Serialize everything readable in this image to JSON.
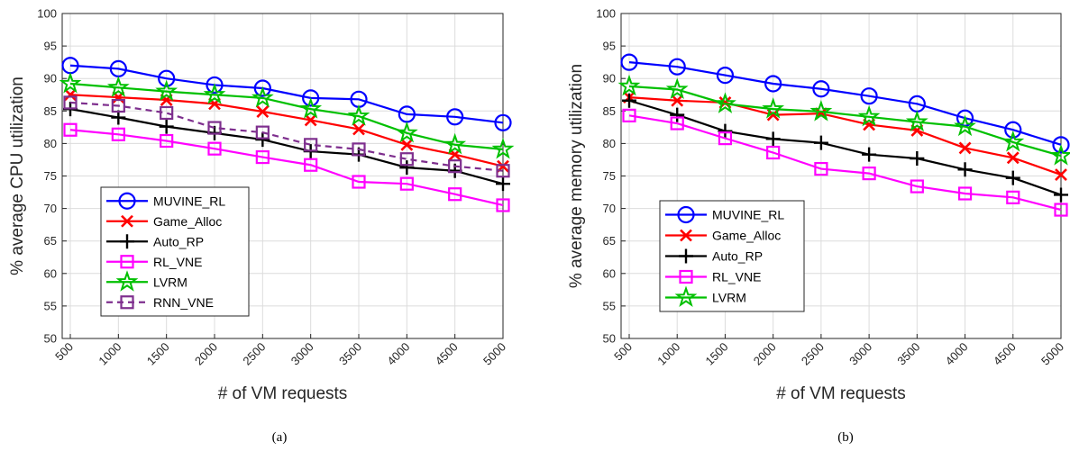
{
  "chart_data": [
    {
      "type": "line",
      "panel_label": "(a)",
      "xlabel": "# of VM requests",
      "ylabel": "% average CPU utilization",
      "ylim": [
        50,
        100
      ],
      "yticks": [
        50,
        55,
        60,
        65,
        70,
        75,
        80,
        85,
        90,
        95,
        100
      ],
      "x": [
        500,
        1000,
        1500,
        2000,
        2500,
        3000,
        3500,
        4000,
        4500,
        5000
      ],
      "grid": true,
      "legend_position": "bottom-left",
      "series": [
        {
          "name": "MUVINE_RL",
          "color": "#0000ff",
          "marker": "circle",
          "dash": false,
          "values": [
            92.0,
            91.5,
            90.0,
            89.0,
            88.5,
            87.0,
            86.8,
            84.5,
            84.1,
            83.2
          ]
        },
        {
          "name": "Game_Alloc",
          "color": "#ff0000",
          "marker": "x",
          "dash": false,
          "values": [
            87.5,
            87.1,
            86.7,
            86.1,
            84.9,
            83.6,
            82.2,
            79.8,
            78.3,
            76.5
          ]
        },
        {
          "name": "Auto_RP",
          "color": "#000000",
          "marker": "plus",
          "dash": false,
          "values": [
            85.3,
            84.0,
            82.6,
            81.6,
            80.6,
            78.8,
            78.3,
            76.3,
            75.8,
            73.8
          ]
        },
        {
          "name": "RL_VNE",
          "color": "#ff00ff",
          "marker": "square",
          "dash": false,
          "values": [
            82.1,
            81.4,
            80.4,
            79.2,
            77.9,
            76.7,
            74.1,
            73.8,
            72.2,
            70.5
          ]
        },
        {
          "name": "LVRM",
          "color": "#00c000",
          "marker": "star",
          "dash": false,
          "values": [
            89.2,
            88.6,
            88.0,
            87.5,
            87.0,
            85.3,
            84.2,
            81.6,
            79.8,
            79.1
          ]
        },
        {
          "name": "RNN_VNE",
          "color": "#7e2f8e",
          "marker": "square",
          "dash": true,
          "values": [
            86.3,
            85.8,
            84.7,
            82.4,
            81.7,
            79.8,
            79.1,
            77.6,
            76.5,
            75.8
          ]
        }
      ]
    },
    {
      "type": "line",
      "panel_label": "(b)",
      "xlabel": "# of VM requests",
      "ylabel": "% average memory utilization",
      "ylim": [
        50,
        100
      ],
      "yticks": [
        50,
        55,
        60,
        65,
        70,
        75,
        80,
        85,
        90,
        95,
        100
      ],
      "x": [
        500,
        1000,
        1500,
        2000,
        2500,
        3000,
        3500,
        4000,
        4500,
        5000
      ],
      "grid": true,
      "legend_position": "bottom-left",
      "series": [
        {
          "name": "MUVINE_RL",
          "color": "#0000ff",
          "marker": "circle",
          "dash": false,
          "values": [
            92.5,
            91.8,
            90.5,
            89.2,
            88.4,
            87.3,
            86.1,
            83.9,
            82.1,
            79.8
          ]
        },
        {
          "name": "Game_Alloc",
          "color": "#ff0000",
          "marker": "x",
          "dash": false,
          "values": [
            87.1,
            86.6,
            86.3,
            84.4,
            84.6,
            82.9,
            82.0,
            79.3,
            77.8,
            75.2
          ]
        },
        {
          "name": "Auto_RP",
          "color": "#000000",
          "marker": "plus",
          "dash": false,
          "values": [
            86.6,
            84.4,
            81.9,
            80.7,
            80.1,
            78.3,
            77.7,
            76.0,
            74.7,
            72.1
          ]
        },
        {
          "name": "RL_VNE",
          "color": "#ff00ff",
          "marker": "square",
          "dash": false,
          "values": [
            84.3,
            83.1,
            80.8,
            78.6,
            76.1,
            75.4,
            73.4,
            72.3,
            71.7,
            69.8
          ]
        },
        {
          "name": "LVRM",
          "color": "#00c000",
          "marker": "star",
          "dash": false,
          "values": [
            88.8,
            88.3,
            86.1,
            85.3,
            84.9,
            84.1,
            83.3,
            82.6,
            80.2,
            78.1
          ]
        }
      ]
    }
  ]
}
